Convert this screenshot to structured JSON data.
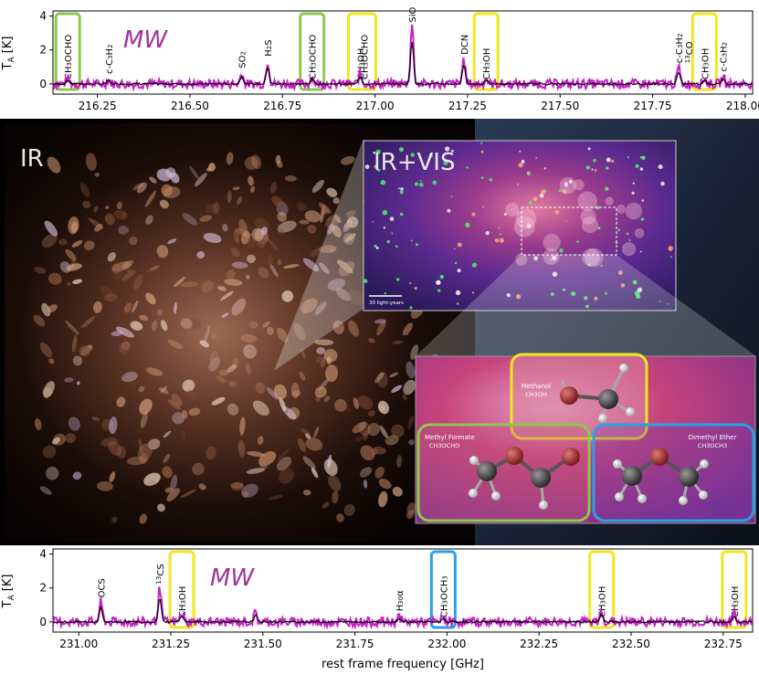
{
  "top_spectrum": {
    "ylabel": "T_A [K]",
    "ylabel_main": "T",
    "ylabel_sub": "A",
    "ylabel_unit": " [K]",
    "band_label": "MW",
    "yticks": [
      "0",
      "2",
      "4"
    ],
    "xticks": [
      "216.25",
      "216.50",
      "216.75",
      "217.00",
      "217.25",
      "217.50",
      "217.75",
      "218.00"
    ]
  },
  "bottom_spectrum": {
    "ylabel_main": "T",
    "ylabel_sub": "A",
    "ylabel_unit": " [K]",
    "band_label": "MW",
    "yticks": [
      "0",
      "2",
      "4"
    ],
    "xticks": [
      "231.00",
      "231.25",
      "231.50",
      "231.75",
      "232.00",
      "232.25",
      "232.50",
      "232.75"
    ],
    "xlabel": "rest frame frequency [GHz]"
  },
  "image_labels": {
    "ir": "IR",
    "ir_vis": "IR+VIS",
    "scale_bar": "30 light-years"
  },
  "molecules": {
    "methanol_name": "Methanol",
    "methanol_formula": "CH3OH",
    "methyl_formate_name": "Methyl Formate",
    "methyl_formate_formula": "CH3OCHO",
    "dimethyl_ether_name": "Dimethyl Ether",
    "dimethyl_ether_formula": "CH3OCH3"
  },
  "colors": {
    "spectrum_magenta": "#c81ec8",
    "spectrum_black": "#000000",
    "box_green": "#8cc84b",
    "box_yellow": "#f0e61e",
    "box_blue": "#28a0e6",
    "mw_purple": "#a0329b"
  },
  "chart_data": [
    {
      "type": "line",
      "xlabel": "",
      "ylabel": "T_A [K]",
      "xlim": [
        216.13,
        218.02
      ],
      "ylim": [
        -0.6,
        4.3
      ],
      "line_annotations": [
        {
          "x": 216.17,
          "label": "CH3OCHO",
          "box": "green"
        },
        {
          "x": 216.28,
          "label": "c-C3H2",
          "box": "none"
        },
        {
          "x": 216.64,
          "label": "SO2",
          "box": "none"
        },
        {
          "x": 216.71,
          "label": "H2S",
          "box": "none"
        },
        {
          "x": 216.83,
          "label": "CH3OCHO",
          "box": "green"
        },
        {
          "x": 216.96,
          "label": "CH3OH",
          "box": "yellow"
        },
        {
          "x": 216.97,
          "label": "CH3OCHO",
          "box": "yellow"
        },
        {
          "x": 217.1,
          "label": "SiO",
          "box": "none"
        },
        {
          "x": 217.24,
          "label": "DCN",
          "box": "none"
        },
        {
          "x": 217.3,
          "label": "CH3OH",
          "box": "yellow"
        },
        {
          "x": 217.82,
          "label": "c-C3H2",
          "box": "none"
        },
        {
          "x": 217.82,
          "label": "13CO",
          "box": "none"
        },
        {
          "x": 217.89,
          "label": "CH3OH",
          "box": "yellow"
        },
        {
          "x": 217.94,
          "label": "c-C3H2",
          "box": "none"
        }
      ],
      "peaks": [
        {
          "x": 216.17,
          "y": 0.3
        },
        {
          "x": 216.28,
          "y": 0.25
        },
        {
          "x": 216.64,
          "y": 0.6
        },
        {
          "x": 216.71,
          "y": 1.3
        },
        {
          "x": 216.83,
          "y": 0.4
        },
        {
          "x": 216.96,
          "y": 0.6
        },
        {
          "x": 217.1,
          "y": 3.3
        },
        {
          "x": 217.24,
          "y": 1.4
        },
        {
          "x": 217.3,
          "y": 0.3
        },
        {
          "x": 217.82,
          "y": 0.9
        },
        {
          "x": 217.89,
          "y": 0.3
        },
        {
          "x": 217.94,
          "y": 0.4
        }
      ]
    },
    {
      "type": "line",
      "xlabel": "rest frame frequency [GHz]",
      "ylabel": "T_A [K]",
      "xlim": [
        230.93,
        232.83
      ],
      "ylim": [
        -0.6,
        4.3
      ],
      "line_annotations": [
        {
          "x": 231.06,
          "label": "OCS",
          "box": "none"
        },
        {
          "x": 231.22,
          "label": "13CS",
          "box": "none"
        },
        {
          "x": 231.28,
          "label": "CH3OH",
          "box": "yellow"
        },
        {
          "x": 231.87,
          "label": "H30α",
          "box": "none"
        },
        {
          "x": 231.99,
          "label": "CH3OCH3",
          "box": "blue"
        },
        {
          "x": 232.42,
          "label": "CH3OH",
          "box": "yellow"
        },
        {
          "x": 232.78,
          "label": "CH3OH",
          "box": "yellow"
        }
      ],
      "peaks": [
        {
          "x": 231.06,
          "y": 1.1
        },
        {
          "x": 231.22,
          "y": 1.9
        },
        {
          "x": 231.28,
          "y": 0.5
        },
        {
          "x": 231.48,
          "y": 0.5
        },
        {
          "x": 231.87,
          "y": 0.3
        },
        {
          "x": 231.99,
          "y": 0.3
        },
        {
          "x": 232.42,
          "y": 0.6
        },
        {
          "x": 232.78,
          "y": 0.4
        }
      ]
    }
  ]
}
